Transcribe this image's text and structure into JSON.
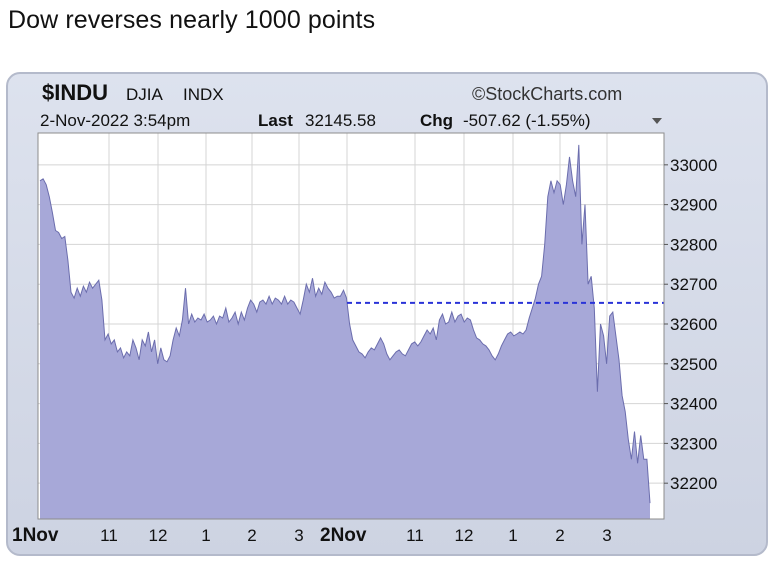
{
  "tweet": {
    "caption": "Dow reverses nearly 1000 points"
  },
  "header": {
    "symbol": "$INDU",
    "name": "DJIA",
    "exchange": "INDX",
    "brand": "©StockCharts.com",
    "datetime": "2-Nov-2022 3:54pm",
    "last_label": "Last",
    "last_value": "32145.58",
    "chg_label": "Chg",
    "chg_value": "-507.62 (-1.55%)",
    "dropdown_icon": "triangle-down-icon"
  },
  "chart_data": {
    "type": "area",
    "ylim": [
      32110,
      33080
    ],
    "y_ticks": [
      "33000",
      "32900",
      "32800",
      "32700",
      "32600",
      "32500",
      "32400",
      "32300",
      "32200"
    ],
    "x_tick_labels": [
      "1Nov",
      "11",
      "12",
      "1",
      "2",
      "3",
      "2Nov",
      "11",
      "12",
      "1",
      "2",
      "3"
    ],
    "previous_close": 32653,
    "colors": {
      "area": "#a7a8d8",
      "line": "#6b6dad",
      "ref_line": "#2a33d8",
      "grid": "#d4d4d4"
    },
    "series": [
      {
        "values": [
          32960,
          32965,
          32950,
          32920,
          32880,
          32835,
          32830,
          32815,
          32820,
          32760,
          32680,
          32665,
          32690,
          32670,
          32695,
          32680,
          32705,
          32690,
          32700,
          32710,
          32660,
          32560,
          32575,
          32550,
          32560,
          32530,
          32540,
          32515,
          32530,
          32520,
          32560,
          32540,
          32510,
          32560,
          32545,
          32580,
          32530,
          32560,
          32500,
          32540,
          32510,
          32505,
          32520,
          32560,
          32590,
          32570,
          32610,
          32690,
          32600,
          32625,
          32605,
          32615,
          32610,
          32625,
          32605,
          32610,
          32620,
          32600,
          32620,
          32615,
          32640,
          32605,
          32615,
          32630,
          32600,
          32630,
          32610,
          32640,
          32660,
          32650,
          32630,
          32655,
          32660,
          32650,
          32670,
          32650,
          32665,
          32660,
          32650,
          32670,
          32650,
          32660,
          32655,
          32640,
          32625,
          32660,
          32700,
          32680,
          32715,
          32670,
          32690,
          32675,
          32705,
          32690,
          32680,
          32665,
          32670,
          32670,
          32685,
          32665,
          32600,
          32560,
          32545,
          32530,
          32525,
          32515,
          32530,
          32540,
          32535,
          32550,
          32565,
          32550,
          32525,
          32510,
          32520,
          32530,
          32535,
          32525,
          32520,
          32535,
          32550,
          32555,
          32545,
          32555,
          32570,
          32585,
          32575,
          32590,
          32560,
          32610,
          32625,
          32600,
          32605,
          32630,
          32605,
          32620,
          32625,
          32605,
          32615,
          32610,
          32585,
          32565,
          32560,
          32550,
          32545,
          32535,
          32520,
          32510,
          32525,
          32545,
          32560,
          32575,
          32580,
          32570,
          32575,
          32580,
          32575,
          32585,
          32615,
          32640,
          32665,
          32700,
          32720,
          32800,
          32920,
          32960,
          32930,
          32960,
          32950,
          32900,
          32950,
          33020,
          32960,
          32920,
          33050,
          32800,
          32900,
          32700,
          32720,
          32640,
          32430,
          32600,
          32570,
          32500,
          32620,
          32630,
          32570,
          32510,
          32420,
          32380,
          32310,
          32260,
          32330,
          32250,
          32320,
          32260,
          32260,
          32150
        ]
      }
    ]
  }
}
